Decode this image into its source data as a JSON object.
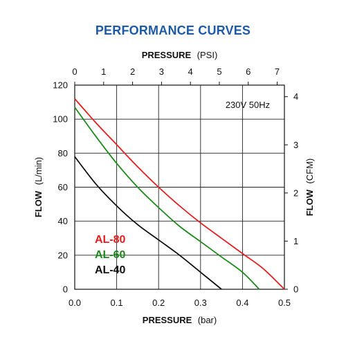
{
  "chart_data": {
    "type": "line",
    "title": "PERFORMANCE CURVES",
    "top_axis": {
      "label_bold": "PRESSURE",
      "label_unit": "(PSI)",
      "range": [
        0,
        7.25
      ],
      "ticks": [
        "0",
        "1",
        "2",
        "3",
        "4",
        "5",
        "6",
        "7"
      ]
    },
    "bottom_axis": {
      "label_bold": "PRESSURE",
      "label_unit": "(bar)",
      "range": [
        0,
        0.5
      ],
      "ticks": [
        "0.0",
        "0.1",
        "0.2",
        "0.3",
        "0.4",
        "0.5"
      ]
    },
    "left_axis": {
      "label_bold": "FLOW",
      "label_unit": "(L/min)",
      "range": [
        0,
        120
      ],
      "ticks": [
        "0",
        "20",
        "40",
        "60",
        "80",
        "100",
        "120"
      ]
    },
    "right_axis": {
      "label_bold": "FLOW",
      "label_unit": "(CFM)",
      "range": [
        0,
        4.24
      ],
      "ticks": [
        "0",
        "1",
        "2",
        "3",
        "4"
      ]
    },
    "annotation": "230V 50Hz",
    "grid": true,
    "legend_placement": "bottom-left",
    "series": [
      {
        "name": "AL-80",
        "color": "#e41e1e",
        "x": [
          0,
          0.05,
          0.1,
          0.15,
          0.2,
          0.25,
          0.3,
          0.35,
          0.4,
          0.45,
          0.5
        ],
        "y": [
          112,
          98,
          85,
          72,
          60,
          49,
          39,
          30,
          21,
          12,
          0
        ]
      },
      {
        "name": "AL-60",
        "color": "#1a8a1a",
        "x": [
          0,
          0.05,
          0.1,
          0.15,
          0.2,
          0.25,
          0.3,
          0.35,
          0.4,
          0.44
        ],
        "y": [
          107,
          90,
          74,
          60,
          48,
          37,
          28,
          19,
          10,
          0
        ]
      },
      {
        "name": "AL-40",
        "color": "#111111",
        "x": [
          0,
          0.05,
          0.1,
          0.15,
          0.2,
          0.25,
          0.3,
          0.35
        ],
        "y": [
          78,
          62,
          49,
          38,
          29,
          20,
          10,
          0
        ]
      }
    ]
  }
}
